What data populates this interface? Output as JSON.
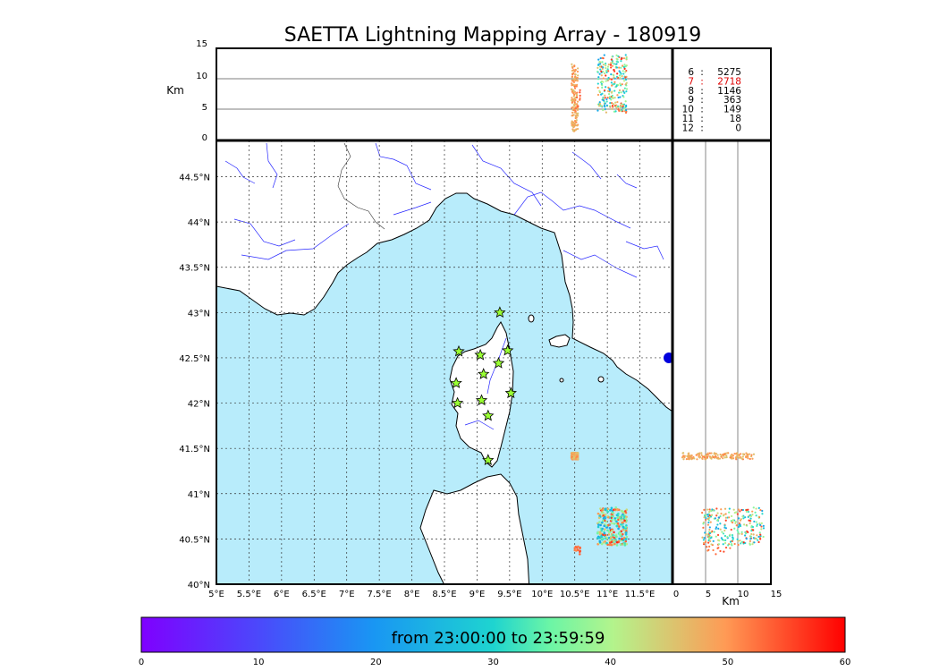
{
  "chart_data": {
    "type": "scatter",
    "title": "SAETTA Lightning Mapping Array - 180919",
    "map": {
      "xlim": [
        5,
        12
      ],
      "ylim": [
        40,
        44.9
      ],
      "x_ticks": [
        "5°E",
        "5.5°E",
        "6°E",
        "6.5°E",
        "7°E",
        "7.5°E",
        "8°E",
        "8.5°E",
        "9°E",
        "9.5°E",
        "10°E",
        "10.5°E",
        "11°E",
        "11.5°E"
      ],
      "y_ticks": [
        "40°N",
        "40.5°N",
        "41°N",
        "41.5°N",
        "42°N",
        "42.5°N",
        "43°N",
        "43.5°N",
        "44°N",
        "44.5°N"
      ],
      "grid": true
    },
    "altitude_panel": {
      "ylabel": "Km",
      "ylim": [
        0,
        15
      ],
      "y_ticks": [
        "0",
        "5",
        "10",
        "15"
      ]
    },
    "side_panel": {
      "xlabel": "Km",
      "xlim": [
        0,
        15
      ],
      "x_ticks": [
        "0",
        "5",
        "10",
        "15"
      ]
    },
    "station_counts": [
      {
        "stations": "6",
        "count": "5275",
        "color": "#000000"
      },
      {
        "stations": "7",
        "count": "2718",
        "color": "#e00000"
      },
      {
        "stations": "8",
        "count": "1146",
        "color": "#000000"
      },
      {
        "stations": "9",
        "count": "363",
        "color": "#000000"
      },
      {
        "stations": "10",
        "count": "149",
        "color": "#000000"
      },
      {
        "stations": "11",
        "count": "18",
        "color": "#000000"
      },
      {
        "stations": "12",
        "count": "0",
        "color": "#000000"
      }
    ],
    "sensor_stations": [
      {
        "lon": 9.35,
        "lat": 43.0
      },
      {
        "lon": 8.72,
        "lat": 42.57
      },
      {
        "lon": 9.05,
        "lat": 42.53
      },
      {
        "lon": 9.47,
        "lat": 42.58
      },
      {
        "lon": 9.33,
        "lat": 42.44
      },
      {
        "lon": 9.1,
        "lat": 42.32
      },
      {
        "lon": 8.68,
        "lat": 42.22
      },
      {
        "lon": 9.52,
        "lat": 42.11
      },
      {
        "lon": 9.07,
        "lat": 42.03
      },
      {
        "lon": 8.7,
        "lat": 42.0
      },
      {
        "lon": 9.17,
        "lat": 41.86
      },
      {
        "lon": 9.17,
        "lat": 41.37
      }
    ],
    "source_clusters": [
      {
        "lon_range": [
          10.45,
          10.55
        ],
        "lat_range": [
          41.38,
          41.45
        ],
        "alt_range": [
          1.5,
          12.5
        ],
        "time_range": [
          45,
          52
        ],
        "count": 160
      },
      {
        "lon_range": [
          10.85,
          11.3
        ],
        "lat_range": [
          40.43,
          40.85
        ],
        "alt_range": [
          4.5,
          14
        ],
        "time_range": [
          22,
          58
        ],
        "count": 260
      },
      {
        "lon_range": [
          10.5,
          10.6
        ],
        "lat_range": [
          40.33,
          40.42
        ],
        "alt_range": [
          5,
          9
        ],
        "time_range": [
          50,
          56
        ],
        "count": 12
      }
    ],
    "colorbar": {
      "label": "from 23:00:00 to 23:59:59",
      "range": [
        0,
        60
      ],
      "ticks": [
        "0",
        "10",
        "20",
        "30",
        "40",
        "50",
        "60"
      ]
    }
  }
}
